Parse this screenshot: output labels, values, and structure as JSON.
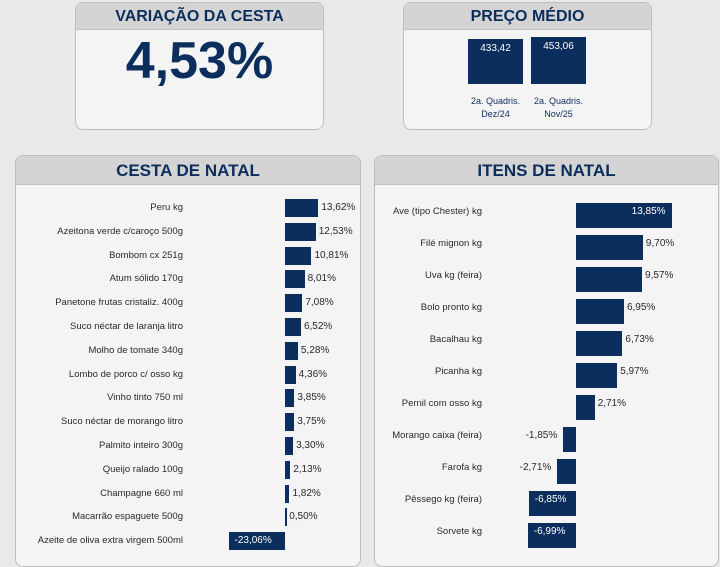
{
  "variacao": {
    "title": "VARIAÇÃO DA CESTA",
    "value": "4,53%"
  },
  "preco_medio": {
    "title": "PREÇO MÉDIO",
    "items": [
      {
        "value": 433.42,
        "value_label": "433,42",
        "label_line1": "2a. Quadris.",
        "label_line2": "Dez/24"
      },
      {
        "value": 453.06,
        "value_label": "453,06",
        "label_line1": "2a. Quadris.",
        "label_line2": "Nov/25"
      }
    ]
  },
  "chart_data": [
    {
      "type": "bar",
      "orientation": "horizontal",
      "title": "CESTA DE NATAL",
      "categories": [
        "Peru kg",
        "Azeitona verde c/caroço 500g",
        "Bombom cx 251g",
        "Atum sólido 170g",
        "Panetone frutas cristaliz. 400g",
        "Suco néctar de laranja litro",
        "Molho de tomate 340g",
        "Lombo de porco c/ osso kg",
        "Vinho tinto 750 ml",
        "Suco néctar de morango litro",
        "Palmito inteiro 300g",
        "Queijo ralado 100g",
        "Champagne 660 ml",
        "Macarrão espaguete 500g",
        "Azeite de oliva extra virgem 500ml"
      ],
      "values": [
        13.62,
        12.53,
        10.81,
        8.01,
        7.08,
        6.52,
        5.28,
        4.36,
        3.85,
        3.75,
        3.3,
        2.13,
        1.82,
        0.5,
        -23.06
      ],
      "value_labels": [
        "13,62%",
        "12,53%",
        "10,81%",
        "8,01%",
        "7,08%",
        "6,52%",
        "5,28%",
        "4,36%",
        "3,85%",
        "3,75%",
        "3,30%",
        "2,13%",
        "1,82%",
        "0,50%",
        "-23,06%"
      ]
    },
    {
      "type": "bar",
      "orientation": "horizontal",
      "title": "ITENS DE NATAL",
      "categories": [
        "Ave (tipo Chester) kg",
        "Filé mignon kg",
        "Uva kg (feira)",
        "Bolo pronto kg",
        "Bacalhau kg",
        "Picanha kg",
        "Pernil com osso kg",
        "Morango caixa (feira)",
        "Farofa kg",
        "Pêssego kg (feira)",
        "Sorvete kg"
      ],
      "values": [
        13.85,
        9.7,
        9.57,
        6.95,
        6.73,
        5.97,
        2.71,
        -1.85,
        -2.71,
        -6.85,
        -6.99
      ],
      "value_labels": [
        "13,85%",
        "9,70%",
        "9,57%",
        "6,95%",
        "6,73%",
        "5,97%",
        "2,71%",
        "-1,85%",
        "-2,71%",
        "-6,85%",
        "-6,99%"
      ]
    }
  ],
  "colors": {
    "bar": "#0b2e5c",
    "title": "#0b2e5c"
  }
}
